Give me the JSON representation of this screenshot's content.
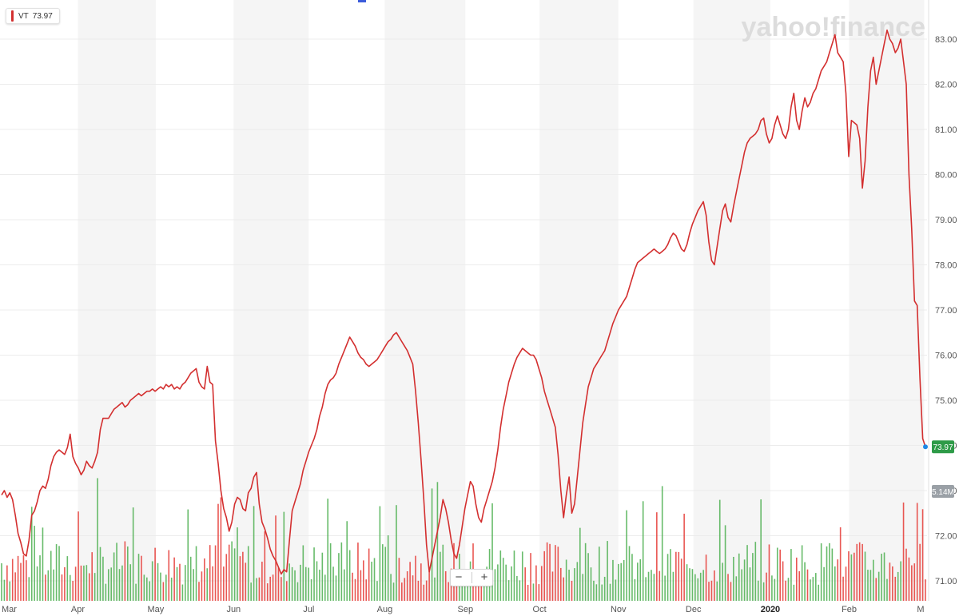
{
  "legend": {
    "symbol": "VT",
    "value": "73.97",
    "color": "#d32f2f"
  },
  "watermark": "yahoo!finance",
  "price_badge": {
    "text": "73.97",
    "color": "#2e9b48"
  },
  "volume_badge": {
    "text": "5.14M",
    "color": "#9aa0a6"
  },
  "zoom": {
    "minus": "−",
    "plus": "+"
  },
  "chart_data": {
    "type": "line",
    "symbol": "VT",
    "series": [
      {
        "name": "VT",
        "color": "#d32f2f",
        "values": [
          72.9,
          73.0,
          72.85,
          72.95,
          72.8,
          72.45,
          72.05,
          71.85,
          71.6,
          71.55,
          71.9,
          72.45,
          72.55,
          72.75,
          73.0,
          73.1,
          73.05,
          73.25,
          73.55,
          73.75,
          73.85,
          73.9,
          73.85,
          73.8,
          73.95,
          74.25,
          73.75,
          73.6,
          73.5,
          73.35,
          73.45,
          73.65,
          73.55,
          73.5,
          73.65,
          73.85,
          74.35,
          74.6,
          74.6,
          74.6,
          74.7,
          74.8,
          74.85,
          74.9,
          74.95,
          74.85,
          74.9,
          75.0,
          75.05,
          75.1,
          75.15,
          75.1,
          75.15,
          75.2,
          75.2,
          75.25,
          75.2,
          75.25,
          75.3,
          75.25,
          75.35,
          75.3,
          75.35,
          75.25,
          75.3,
          75.25,
          75.35,
          75.4,
          75.5,
          75.6,
          75.65,
          75.7,
          75.4,
          75.3,
          75.25,
          75.75,
          75.4,
          75.35,
          74.1,
          73.6,
          73.0,
          72.6,
          72.4,
          72.1,
          72.3,
          72.7,
          72.85,
          72.8,
          72.6,
          72.55,
          72.95,
          73.05,
          73.3,
          73.4,
          72.7,
          72.3,
          72.15,
          71.95,
          71.7,
          71.55,
          71.45,
          71.3,
          71.15,
          71.25,
          71.2,
          71.9,
          72.55,
          72.75,
          72.95,
          73.15,
          73.45,
          73.65,
          73.85,
          74.0,
          74.15,
          74.35,
          74.65,
          74.85,
          75.15,
          75.35,
          75.45,
          75.5,
          75.6,
          75.8,
          75.95,
          76.1,
          76.25,
          76.4,
          76.3,
          76.2,
          76.05,
          75.95,
          75.9,
          75.8,
          75.75,
          75.8,
          75.85,
          75.9,
          76.0,
          76.1,
          76.2,
          76.3,
          76.35,
          76.45,
          76.5,
          76.4,
          76.3,
          76.2,
          76.1,
          75.95,
          75.8,
          75.2,
          74.5,
          73.7,
          72.8,
          71.8,
          71.2,
          71.5,
          71.8,
          72.1,
          72.4,
          72.8,
          72.6,
          72.3,
          71.9,
          71.6,
          71.5,
          71.8,
          72.2,
          72.6,
          72.9,
          73.2,
          73.1,
          72.7,
          72.4,
          72.3,
          72.6,
          72.8,
          73.0,
          73.2,
          73.5,
          73.9,
          74.4,
          74.8,
          75.1,
          75.4,
          75.6,
          75.8,
          75.95,
          76.05,
          76.15,
          76.1,
          76.05,
          76.0,
          76.0,
          75.9,
          75.7,
          75.5,
          75.2,
          75.0,
          74.8,
          74.6,
          74.4,
          73.8,
          73.0,
          72.4,
          72.9,
          73.3,
          72.5,
          72.7,
          73.3,
          73.9,
          74.5,
          74.9,
          75.3,
          75.5,
          75.7,
          75.8,
          75.9,
          76.0,
          76.1,
          76.3,
          76.5,
          76.7,
          76.85,
          77.0,
          77.1,
          77.2,
          77.3,
          77.5,
          77.7,
          77.9,
          78.05,
          78.1,
          78.15,
          78.2,
          78.25,
          78.3,
          78.35,
          78.3,
          78.25,
          78.3,
          78.35,
          78.45,
          78.6,
          78.7,
          78.65,
          78.5,
          78.35,
          78.3,
          78.45,
          78.7,
          78.9,
          79.05,
          79.2,
          79.3,
          79.4,
          79.1,
          78.5,
          78.1,
          78.0,
          78.4,
          78.8,
          79.2,
          79.35,
          79.05,
          78.95,
          79.3,
          79.6,
          79.9,
          80.2,
          80.5,
          80.7,
          80.8,
          80.85,
          80.9,
          81.0,
          81.2,
          81.25,
          80.9,
          80.7,
          80.8,
          81.1,
          81.3,
          81.1,
          80.9,
          80.8,
          81.0,
          81.5,
          81.8,
          81.2,
          81.0,
          81.4,
          81.7,
          81.5,
          81.6,
          81.8,
          81.9,
          82.1,
          82.3,
          82.4,
          82.5,
          82.7,
          82.9,
          83.1,
          82.7,
          82.6,
          82.5,
          81.8,
          80.4,
          81.2,
          81.15,
          81.1,
          80.8,
          79.7,
          80.3,
          81.5,
          82.3,
          82.6,
          82.0,
          82.3,
          82.6,
          82.9,
          83.2,
          83.0,
          82.9,
          82.7,
          82.8,
          83.0,
          82.5,
          82.0,
          80.0,
          78.8,
          77.2,
          77.1,
          75.5,
          74.15,
          73.97
        ]
      }
    ],
    "x_ticks": [
      "Mar",
      "Apr",
      "May",
      "Jun",
      "Jul",
      "Aug",
      "Sep",
      "Oct",
      "Nov",
      "Dec",
      "2020",
      "Feb",
      "M"
    ],
    "x_tick_fraction": [
      0.0,
      0.084,
      0.168,
      0.252,
      0.333,
      0.415,
      0.502,
      0.582,
      0.667,
      0.748,
      0.831,
      0.916,
      0.997
    ],
    "y_ticks": [
      71.0,
      72.0,
      73.0,
      74.0,
      75.0,
      76.0,
      77.0,
      78.0,
      79.0,
      80.0,
      81.0,
      82.0,
      83.0
    ],
    "y_tick_labels": [
      "71.00",
      "72.00",
      "73.00",
      "74.00",
      "75.00",
      "76.00",
      "77.00",
      "78.00",
      "79.00",
      "80.00",
      "81.00",
      "82.00",
      "83.00"
    ],
    "ylim": [
      70.6,
      83.45
    ],
    "grid": true,
    "volume": {
      "up_color": "#4caf50",
      "down_color": "#e53935",
      "last": "5.14M"
    }
  }
}
